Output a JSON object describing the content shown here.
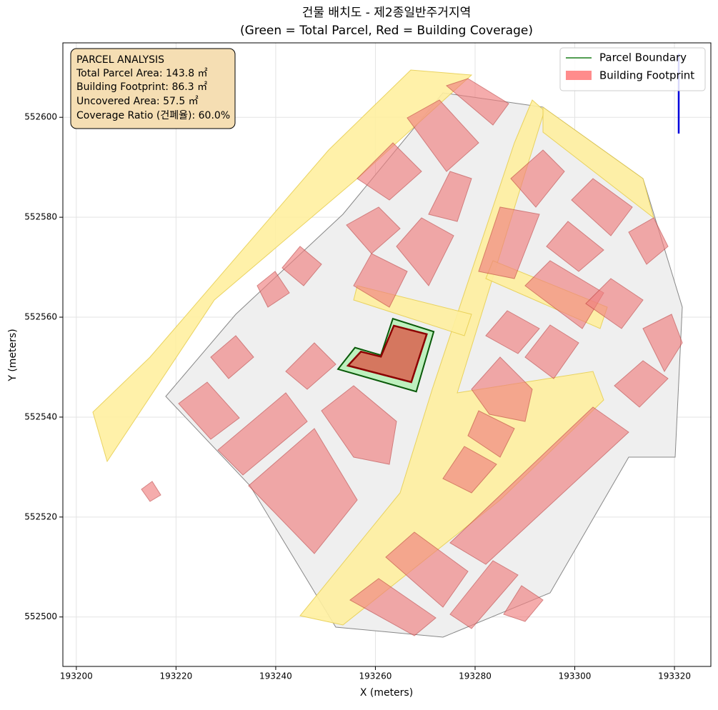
{
  "chart_data": {
    "type": "map",
    "title": "건물 배치도 - 제2종일반주거지역",
    "subtitle": "(Green = Total Parcel, Red = Building Coverage)",
    "xlabel": "X (meters)",
    "ylabel": "Y (meters)",
    "xlim": [
      193197.3,
      193327.3
    ],
    "ylim": [
      552490.1,
      552614.9
    ],
    "xticks": [
      193200,
      193220,
      193240,
      193260,
      193280,
      193300,
      193320
    ],
    "yticks": [
      552500,
      552520,
      552540,
      552560,
      552580,
      552600
    ],
    "grid": true,
    "legend_position": "upper right",
    "legend": [
      {
        "name": "Parcel Boundary",
        "color": "#1a7f1a"
      },
      {
        "name": "Building Footprint",
        "color": "#ff7f7f"
      }
    ],
    "annotation": [
      "PARCEL ANALYSIS",
      "Total Parcel Area: 143.8 ㎡",
      "Building Footprint: 86.3 ㎡",
      "Uncovered Area: 57.5 ㎡",
      "Coverage Ratio (건폐율): 60.0%"
    ],
    "parcel": {
      "color": "#b8f0b8",
      "edge": "#0a5a0a",
      "x": [
        193252.5,
        193255.9,
        193261.1,
        193263.5,
        193271.7,
        193268.2
      ],
      "y": [
        552549.6,
        552553.9,
        552552.4,
        552559.7,
        552557.1,
        552545.1
      ]
    },
    "building": {
      "color": "#d9614f",
      "edge": "#8b0000",
      "x": [
        193254.5,
        193257.1,
        193261.1,
        193263.7,
        193270.3,
        193267.2
      ],
      "y": [
        552550.3,
        552553.1,
        552552.1,
        552558.3,
        552556.6,
        552547.0
      ]
    }
  }
}
